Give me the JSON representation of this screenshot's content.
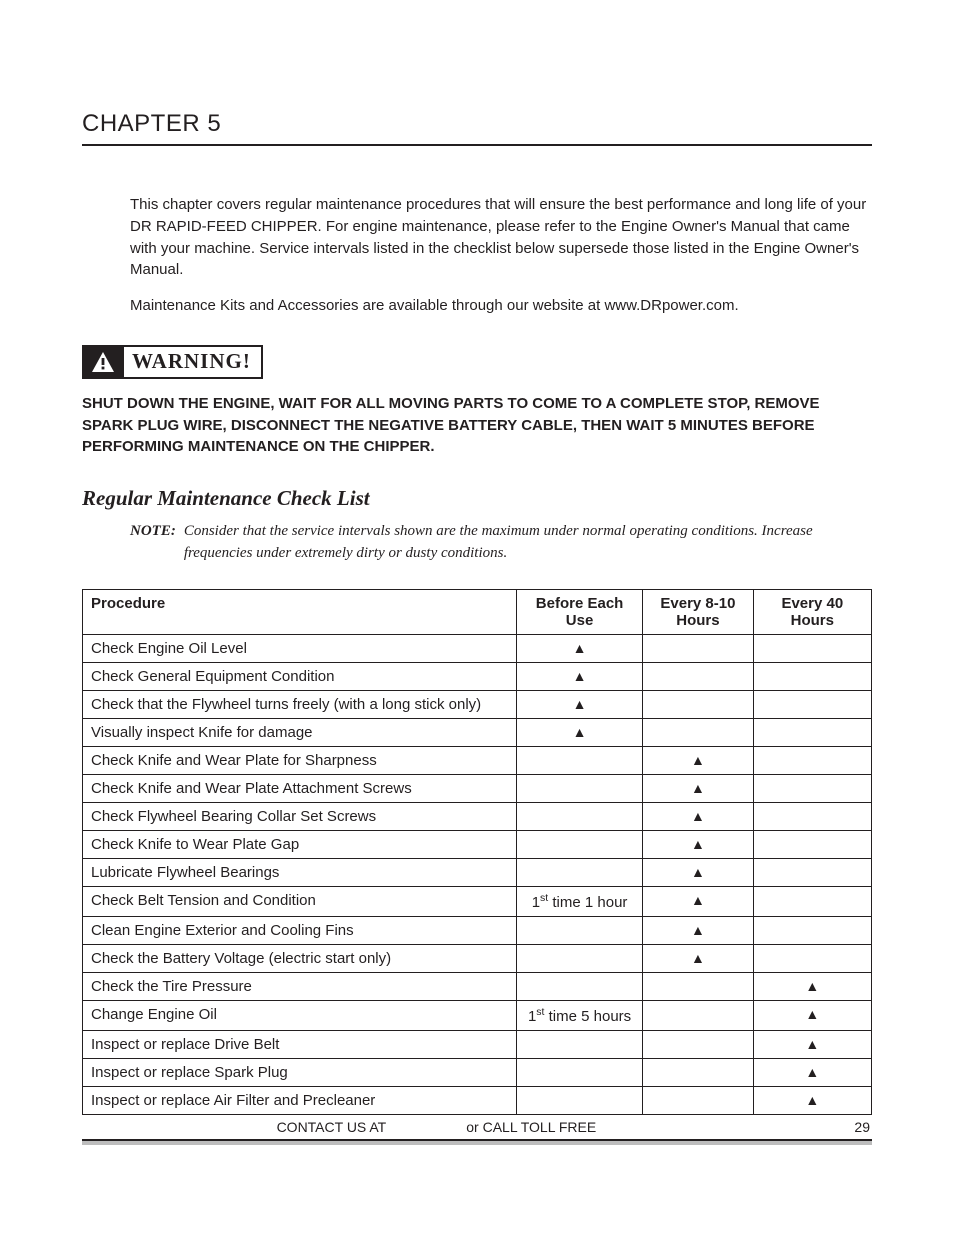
{
  "chapter": {
    "title": "CHAPTER 5"
  },
  "intro": {
    "p1": "This chapter covers regular maintenance procedures that will ensure the best performance and long life of your DR RAPID-FEED CHIPPER.  For engine maintenance, please refer to the Engine Owner's Manual that came with your machine.  Service intervals listed in the checklist below supersede those listed in the Engine Owner's Manual.",
    "p2": "Maintenance Kits and Accessories are available through our website at www.DRpower.com."
  },
  "warning": {
    "icon": "⚠",
    "label": "WARNING!",
    "text": "SHUT DOWN THE ENGINE, WAIT FOR ALL MOVING PARTS TO COME TO A COMPLETE STOP, REMOVE SPARK PLUG WIRE, DISCONNECT THE NEGATIVE BATTERY CABLE, THEN WAIT 5 MINUTES BEFORE PERFORMING MAINTENANCE ON THE CHIPPER."
  },
  "section": {
    "heading": "Regular Maintenance Check List",
    "note_label": "NOTE:",
    "note_body": "Consider that the service intervals shown are the maximum under normal operating conditions.  Increase frequencies under extremely dirty or dusty conditions."
  },
  "table": {
    "headers": {
      "procedure": "Procedure",
      "col1": "Before Each Use",
      "col2": "Every 8-10 Hours",
      "col3": "Every 40 Hours"
    },
    "mark": "▲",
    "rows": [
      {
        "proc": "Check Engine Oil Level",
        "c1": "▲",
        "c2": "",
        "c3": ""
      },
      {
        "proc": "Check General Equipment Condition",
        "c1": "▲",
        "c2": "",
        "c3": ""
      },
      {
        "proc": "Check that the Flywheel turns freely (with a long stick only)",
        "c1": "▲",
        "c2": "",
        "c3": ""
      },
      {
        "proc": "Visually inspect Knife for damage",
        "c1": "▲",
        "c2": "",
        "c3": ""
      },
      {
        "proc": "Check Knife and Wear Plate for Sharpness",
        "c1": "",
        "c2": "▲",
        "c3": ""
      },
      {
        "proc": "Check Knife and Wear Plate Attachment Screws",
        "c1": "",
        "c2": "▲",
        "c3": ""
      },
      {
        "proc": "Check Flywheel Bearing Collar Set Screws",
        "c1": "",
        "c2": "▲",
        "c3": ""
      },
      {
        "proc": "Check Knife to Wear Plate Gap",
        "c1": "",
        "c2": "▲",
        "c3": ""
      },
      {
        "proc": "Lubricate Flywheel Bearings",
        "c1": "",
        "c2": "▲",
        "c3": ""
      },
      {
        "proc": "Check Belt Tension and Condition",
        "c1_html": "1<sup>st</sup> time 1 hour",
        "c2": "▲",
        "c3": ""
      },
      {
        "proc": "Clean Engine Exterior and Cooling Fins",
        "c1": "",
        "c2": "▲",
        "c3": ""
      },
      {
        "proc": "Check the Battery Voltage (electric start only)",
        "c1": "",
        "c2": "▲",
        "c3": ""
      },
      {
        "proc": "Check the Tire Pressure",
        "c1": "",
        "c2": "",
        "c3": "▲"
      },
      {
        "proc": "Change Engine Oil",
        "c1_html": "1<sup>st</sup> time 5 hours",
        "c2": "",
        "c3": "▲"
      },
      {
        "proc": "Inspect or replace Drive Belt",
        "c1": "",
        "c2": "",
        "c3": "▲"
      },
      {
        "proc": "Inspect or replace Spark Plug",
        "c1": "",
        "c2": "",
        "c3": "▲"
      },
      {
        "proc": "Inspect or replace Air Filter and Precleaner",
        "c1": "",
        "c2": "",
        "c3": "▲"
      }
    ]
  },
  "footer": {
    "left": "CONTACT US AT",
    "mid": "or CALL TOLL FREE",
    "page": "29"
  },
  "colors": {
    "text": "#231f20",
    "rule_gray": "#bdbdbd"
  },
  "column_widths_percent": [
    55,
    16,
    14,
    15
  ]
}
